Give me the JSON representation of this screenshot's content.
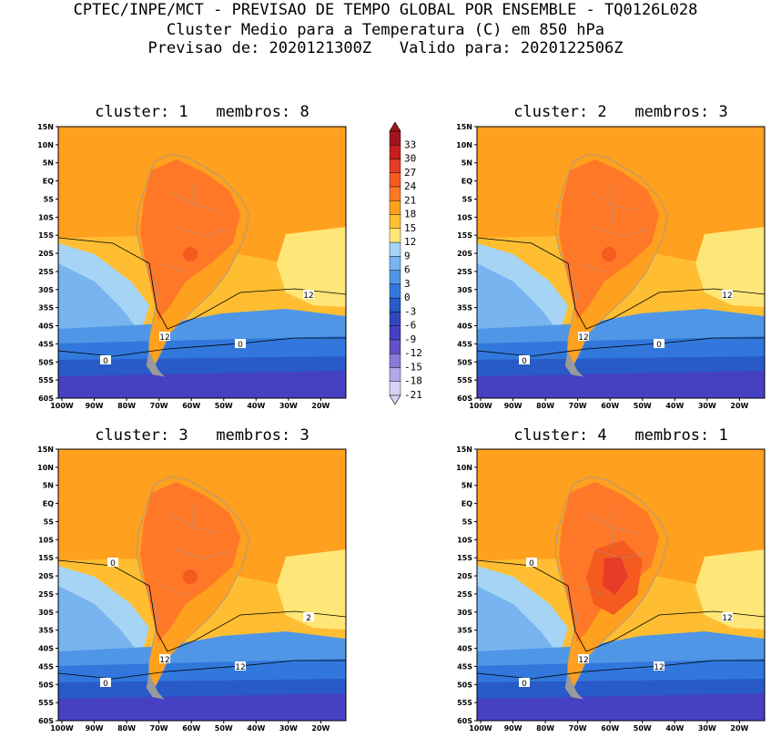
{
  "header": {
    "line1": "CPTEC/INPE/MCT - PREVISAO DE TEMPO GLOBAL POR ENSEMBLE - TQ0126L028",
    "line2": "Cluster Medio para a Temperatura (C) em 850 hPa",
    "line3": "Previsao de: 2020121300Z   Valido para: 2020122506Z"
  },
  "lat_labels": [
    "15N",
    "10N",
    "5N",
    "EQ",
    "5S",
    "10S",
    "15S",
    "20S",
    "25S",
    "30S",
    "35S",
    "40S",
    "45S",
    "50S",
    "55S",
    "60S"
  ],
  "lon_labels": [
    "100W",
    "90W",
    "80W",
    "70W",
    "60W",
    "50W",
    "40W",
    "30W",
    "20W"
  ],
  "colorbar": {
    "levels": [
      "33",
      "30",
      "27",
      "24",
      "21",
      "18",
      "15",
      "12",
      "9",
      "6",
      "3",
      "0",
      "-3",
      "-6",
      "-9",
      "-12",
      "-15",
      "-18",
      "-21"
    ],
    "colors": [
      "#a0141e",
      "#c81e1e",
      "#e63c28",
      "#f55a1e",
      "#ff7828",
      "#ffa01e",
      "#ffbe32",
      "#ffe678",
      "#a6d4f5",
      "#78b4f0",
      "#5096e6",
      "#3278dc",
      "#285ac8",
      "#3246be",
      "#4640c3",
      "#6450c8",
      "#8c78d7",
      "#b4a5e6",
      "#d7d2f5"
    ]
  },
  "panels": [
    {
      "title": "cluster: 1   membros: 8",
      "contour_labels": [
        "12",
        "12",
        "0",
        "0"
      ]
    },
    {
      "title": "cluster: 2   membros: 3",
      "contour_labels": [
        "12",
        "12",
        "0",
        "0"
      ]
    },
    {
      "title": "cluster: 3   membros: 3",
      "contour_labels": [
        "2",
        "12",
        "12",
        "0",
        "0"
      ]
    },
    {
      "title": "cluster: 4   membros: 1",
      "contour_labels": [
        "12",
        "12",
        "12",
        "0",
        "0"
      ]
    }
  ]
}
